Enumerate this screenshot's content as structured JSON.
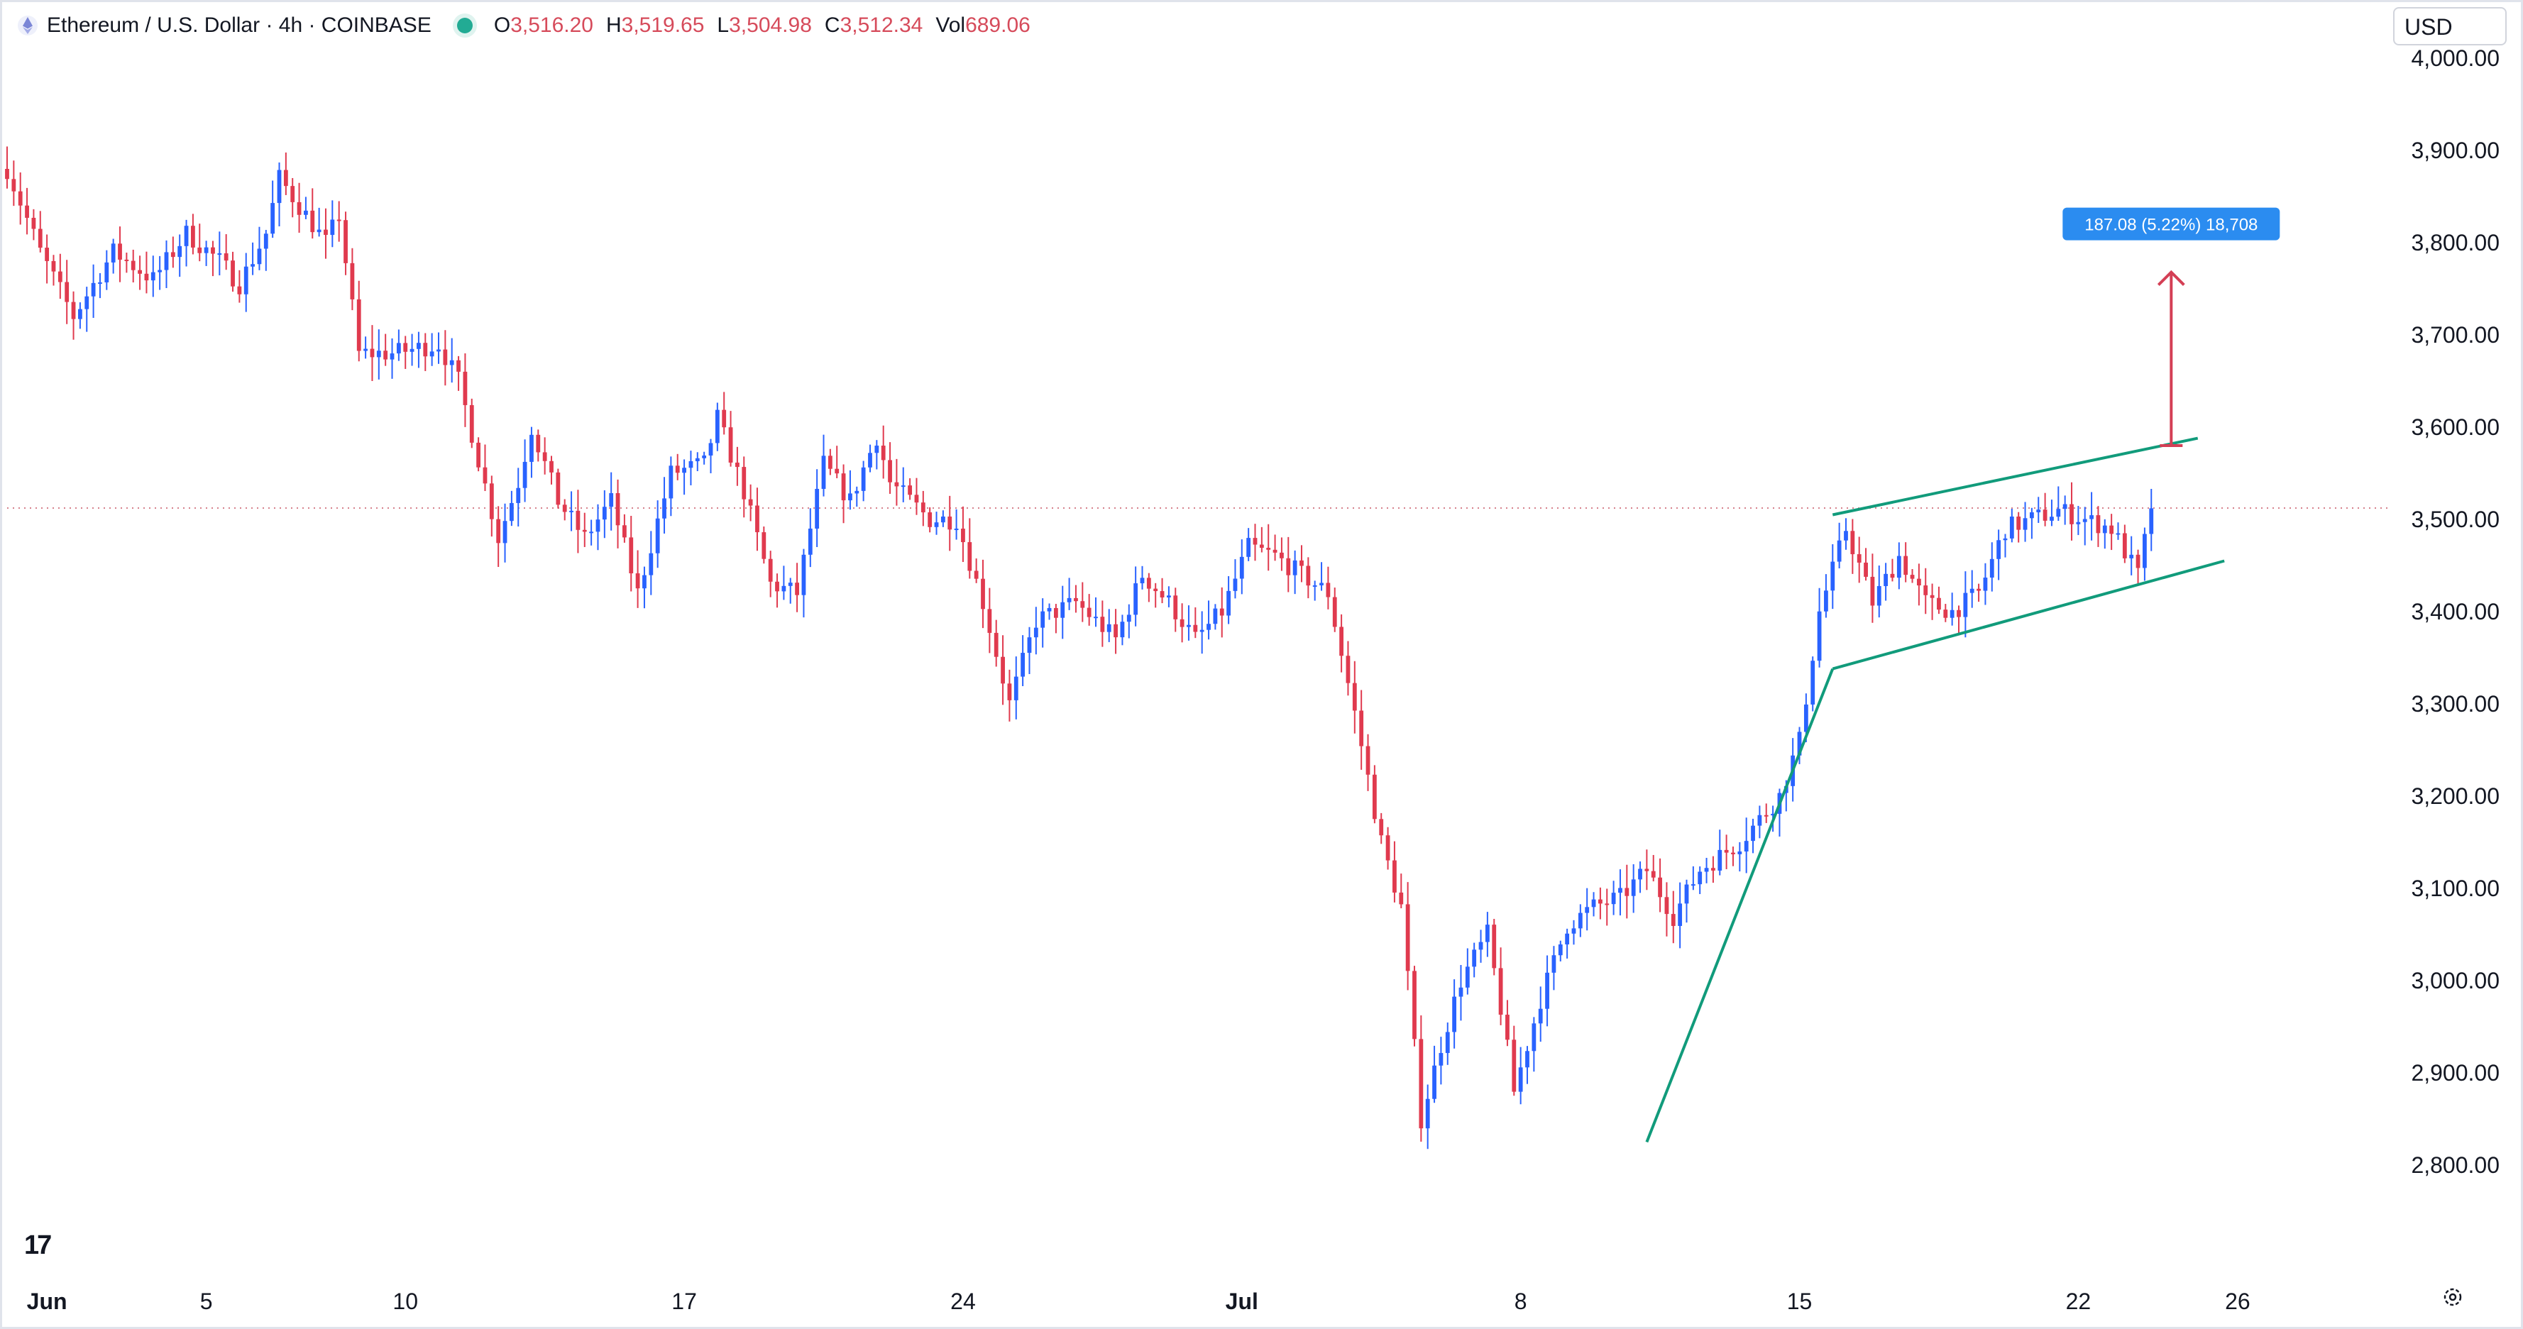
{
  "header": {
    "symbol": "Ethereum / U.S. Dollar · 4h · COINBASE",
    "o_label": "O",
    "o_value": "3,516.20",
    "h_label": "H",
    "h_value": "3,519.65",
    "l_label": "L",
    "l_value": "3,504.98",
    "c_label": "C",
    "c_value": "3,512.34",
    "vol_label": "Vol",
    "vol_value": "689.06",
    "status_color": "#22ab94"
  },
  "currency_button": "USD",
  "logo_text": "17",
  "icons": [
    "ethereum-icon",
    "market-status-dot",
    "tradingview-logo",
    "settings-icon"
  ],
  "colors": {
    "up": "#2962ff",
    "down": "#e03a4e",
    "pattern": "#119b7b",
    "measure": "#d43f55",
    "label_bg": "#2b8cf0"
  },
  "chart_data": {
    "type": "candlestick",
    "title": "Ethereum / U.S. Dollar · 4h · COINBASE",
    "ylim": [
      2740,
      4040
    ],
    "y_ticks": [
      "4,000.00",
      "3,900.00",
      "3,800.00",
      "3,700.00",
      "3,600.00",
      "3,500.00",
      "3,400.00",
      "3,300.00",
      "3,200.00",
      "3,100.00",
      "3,000.00",
      "2,900.00",
      "2,800.00"
    ],
    "y_tick_values": [
      4000,
      3900,
      3800,
      3700,
      3600,
      3500,
      3400,
      3300,
      3200,
      3100,
      3000,
      2900,
      2800
    ],
    "x_ticks": [
      "Jun",
      "5",
      "10",
      "17",
      "24",
      "Jul",
      "8",
      "15",
      "22",
      "26"
    ],
    "x_tick_dates": [
      "2024-06-01",
      "2024-06-05",
      "2024-06-10",
      "2024-06-17",
      "2024-06-24",
      "2024-07-01",
      "2024-07-08",
      "2024-07-15",
      "2024-07-22",
      "2024-07-26"
    ],
    "x_range": [
      "2024-05-31T00:00",
      "2024-07-29T20:00"
    ],
    "last_price_line": 3512.34,
    "anchors": [
      [
        "2024-05-31T00:00",
        3880
      ],
      [
        "2024-05-31T20:00",
        3790
      ],
      [
        "2024-06-01T16:00",
        3720
      ],
      [
        "2024-06-02T16:00",
        3790
      ],
      [
        "2024-06-03T16:00",
        3760
      ],
      [
        "2024-06-04T12:00",
        3810
      ],
      [
        "2024-06-05T08:00",
        3780
      ],
      [
        "2024-06-05T20:00",
        3755
      ],
      [
        "2024-06-06T12:00",
        3810
      ],
      [
        "2024-06-06T20:00",
        3870
      ],
      [
        "2024-06-07T16:00",
        3820
      ],
      [
        "2024-06-08T00:00",
        3800
      ],
      [
        "2024-06-08T08:00",
        3830
      ],
      [
        "2024-06-08T20:00",
        3680
      ],
      [
        "2024-06-09T16:00",
        3680
      ],
      [
        "2024-06-10T20:00",
        3690
      ],
      [
        "2024-06-11T08:00",
        3650
      ],
      [
        "2024-06-12T08:00",
        3480
      ],
      [
        "2024-06-12T20:00",
        3540
      ],
      [
        "2024-06-13T04:00",
        3600
      ],
      [
        "2024-06-13T20:00",
        3520
      ],
      [
        "2024-06-14T12:00",
        3480
      ],
      [
        "2024-06-15T04:00",
        3520
      ],
      [
        "2024-06-15T20:00",
        3420
      ],
      [
        "2024-06-16T16:00",
        3550
      ],
      [
        "2024-06-17T12:00",
        3560
      ],
      [
        "2024-06-17T20:00",
        3610
      ],
      [
        "2024-06-18T12:00",
        3530
      ],
      [
        "2024-06-19T04:00",
        3430
      ],
      [
        "2024-06-19T20:00",
        3420
      ],
      [
        "2024-06-20T12:00",
        3560
      ],
      [
        "2024-06-21T04:00",
        3520
      ],
      [
        "2024-06-21T20:00",
        3590
      ],
      [
        "2024-06-22T04:00",
        3540
      ],
      [
        "2024-06-23T04:00",
        3500
      ],
      [
        "2024-06-23T20:00",
        3500
      ],
      [
        "2024-06-24T12:00",
        3410
      ],
      [
        "2024-06-25T04:00",
        3300
      ],
      [
        "2024-06-25T20:00",
        3390
      ],
      [
        "2024-06-26T20:00",
        3410
      ],
      [
        "2024-06-27T20:00",
        3370
      ],
      [
        "2024-06-28T12:00",
        3440
      ],
      [
        "2024-06-29T04:00",
        3410
      ],
      [
        "2024-06-29T20:00",
        3370
      ],
      [
        "2024-06-30T12:00",
        3400
      ],
      [
        "2024-07-01T04:00",
        3470
      ],
      [
        "2024-07-01T20:00",
        3460
      ],
      [
        "2024-07-02T12:00",
        3440
      ],
      [
        "2024-07-03T04:00",
        3420
      ],
      [
        "2024-07-03T20:00",
        3290
      ],
      [
        "2024-07-04T12:00",
        3150
      ],
      [
        "2024-07-05T00:00",
        3080
      ],
      [
        "2024-07-05T12:00",
        2850
      ],
      [
        "2024-07-06T00:00",
        2930
      ],
      [
        "2024-07-06T12:00",
        3000
      ],
      [
        "2024-07-07T04:00",
        3050
      ],
      [
        "2024-07-07T12:00",
        2970
      ],
      [
        "2024-07-07T20:00",
        2880
      ],
      [
        "2024-07-08T12:00",
        2980
      ],
      [
        "2024-07-09T04:00",
        3060
      ],
      [
        "2024-07-09T20:00",
        3080
      ],
      [
        "2024-07-10T12:00",
        3090
      ],
      [
        "2024-07-11T04:00",
        3120
      ],
      [
        "2024-07-11T20:00",
        3070
      ],
      [
        "2024-07-12T12:00",
        3120
      ],
      [
        "2024-07-13T12:00",
        3150
      ],
      [
        "2024-07-14T12:00",
        3200
      ],
      [
        "2024-07-15T00:00",
        3260
      ],
      [
        "2024-07-15T12:00",
        3400
      ],
      [
        "2024-07-16T04:00",
        3490
      ],
      [
        "2024-07-16T20:00",
        3410
      ],
      [
        "2024-07-17T12:00",
        3460
      ],
      [
        "2024-07-18T04:00",
        3410
      ],
      [
        "2024-07-18T20:00",
        3400
      ],
      [
        "2024-07-19T12:00",
        3420
      ],
      [
        "2024-07-20T04:00",
        3490
      ],
      [
        "2024-07-20T20:00",
        3500
      ],
      [
        "2024-07-21T12:00",
        3510
      ],
      [
        "2024-07-22T04:00",
        3500
      ],
      [
        "2024-07-22T20:00",
        3490
      ],
      [
        "2024-07-23T12:00",
        3440
      ],
      [
        "2024-07-23T20:00",
        3512
      ]
    ],
    "rising_wedge_upper": [
      [
        "2024-07-15T20:00",
        3505
      ],
      [
        "2024-07-25T00:00",
        3588
      ]
    ],
    "rising_wedge_lower": [
      [
        "2024-07-15T20:00",
        3338
      ],
      [
        "2024-07-25T16:00",
        3455
      ]
    ],
    "trendline": [
      [
        "2024-07-11T04:00",
        2825
      ],
      [
        "2024-07-15T20:00",
        3338
      ]
    ],
    "measure": {
      "time": "2024-07-24T08:00",
      "from": 3580,
      "to": 3768
    },
    "measure_label": "187.08 (5.22%) 18,708"
  }
}
